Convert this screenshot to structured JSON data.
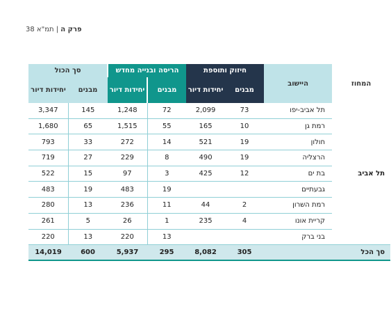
{
  "header": {
    "chapter": "פרק ה",
    "sep": " | ",
    "doc": "תמ\"א 38"
  },
  "table": {
    "col_region": "המחוז",
    "col_city": "היישוב",
    "groups": [
      "חיזוק ותוספת",
      "הריסה ובנייה מחדש",
      "סך הכול"
    ],
    "sub_buildings": "מבנים",
    "sub_units": "יחידות דיור",
    "region": "תל אביב",
    "rows": [
      {
        "city": "תל אביב-יפו",
        "g1b": "73",
        "g1u": "2,099",
        "g2b": "72",
        "g2u": "1,248",
        "tb": "145",
        "tu": "3,347"
      },
      {
        "city": "רמת גן",
        "g1b": "10",
        "g1u": "165",
        "g2b": "55",
        "g2u": "1,515",
        "tb": "65",
        "tu": "1,680"
      },
      {
        "city": "חולון",
        "g1b": "19",
        "g1u": "521",
        "g2b": "14",
        "g2u": "272",
        "tb": "33",
        "tu": "793"
      },
      {
        "city": "הרצליה",
        "g1b": "19",
        "g1u": "490",
        "g2b": "8",
        "g2u": "229",
        "tb": "27",
        "tu": "719"
      },
      {
        "city": "בת ים",
        "g1b": "12",
        "g1u": "425",
        "g2b": "3",
        "g2u": "97",
        "tb": "15",
        "tu": "522"
      },
      {
        "city": "גבעתיים",
        "g1b": "",
        "g1u": "",
        "g2b": "19",
        "g2u": "483",
        "tb": "19",
        "tu": "483"
      },
      {
        "city": "רמת השרון",
        "g1b": "2",
        "g1u": "44",
        "g2b": "11",
        "g2u": "236",
        "tb": "13",
        "tu": "280"
      },
      {
        "city": "קריית אונו",
        "g1b": "4",
        "g1u": "235",
        "g2b": "1",
        "g2u": "26",
        "tb": "5",
        "tu": "261"
      },
      {
        "city": "בני ברק",
        "g1b": "",
        "g1u": "",
        "g2b": "13",
        "g2u": "220",
        "tb": "13",
        "tu": "220"
      }
    ],
    "total": {
      "label": "סך הכל",
      "g1b": "305",
      "g1u": "8,082",
      "g2b": "295",
      "g2u": "5,937",
      "tb": "600",
      "tu": "14,019"
    }
  }
}
